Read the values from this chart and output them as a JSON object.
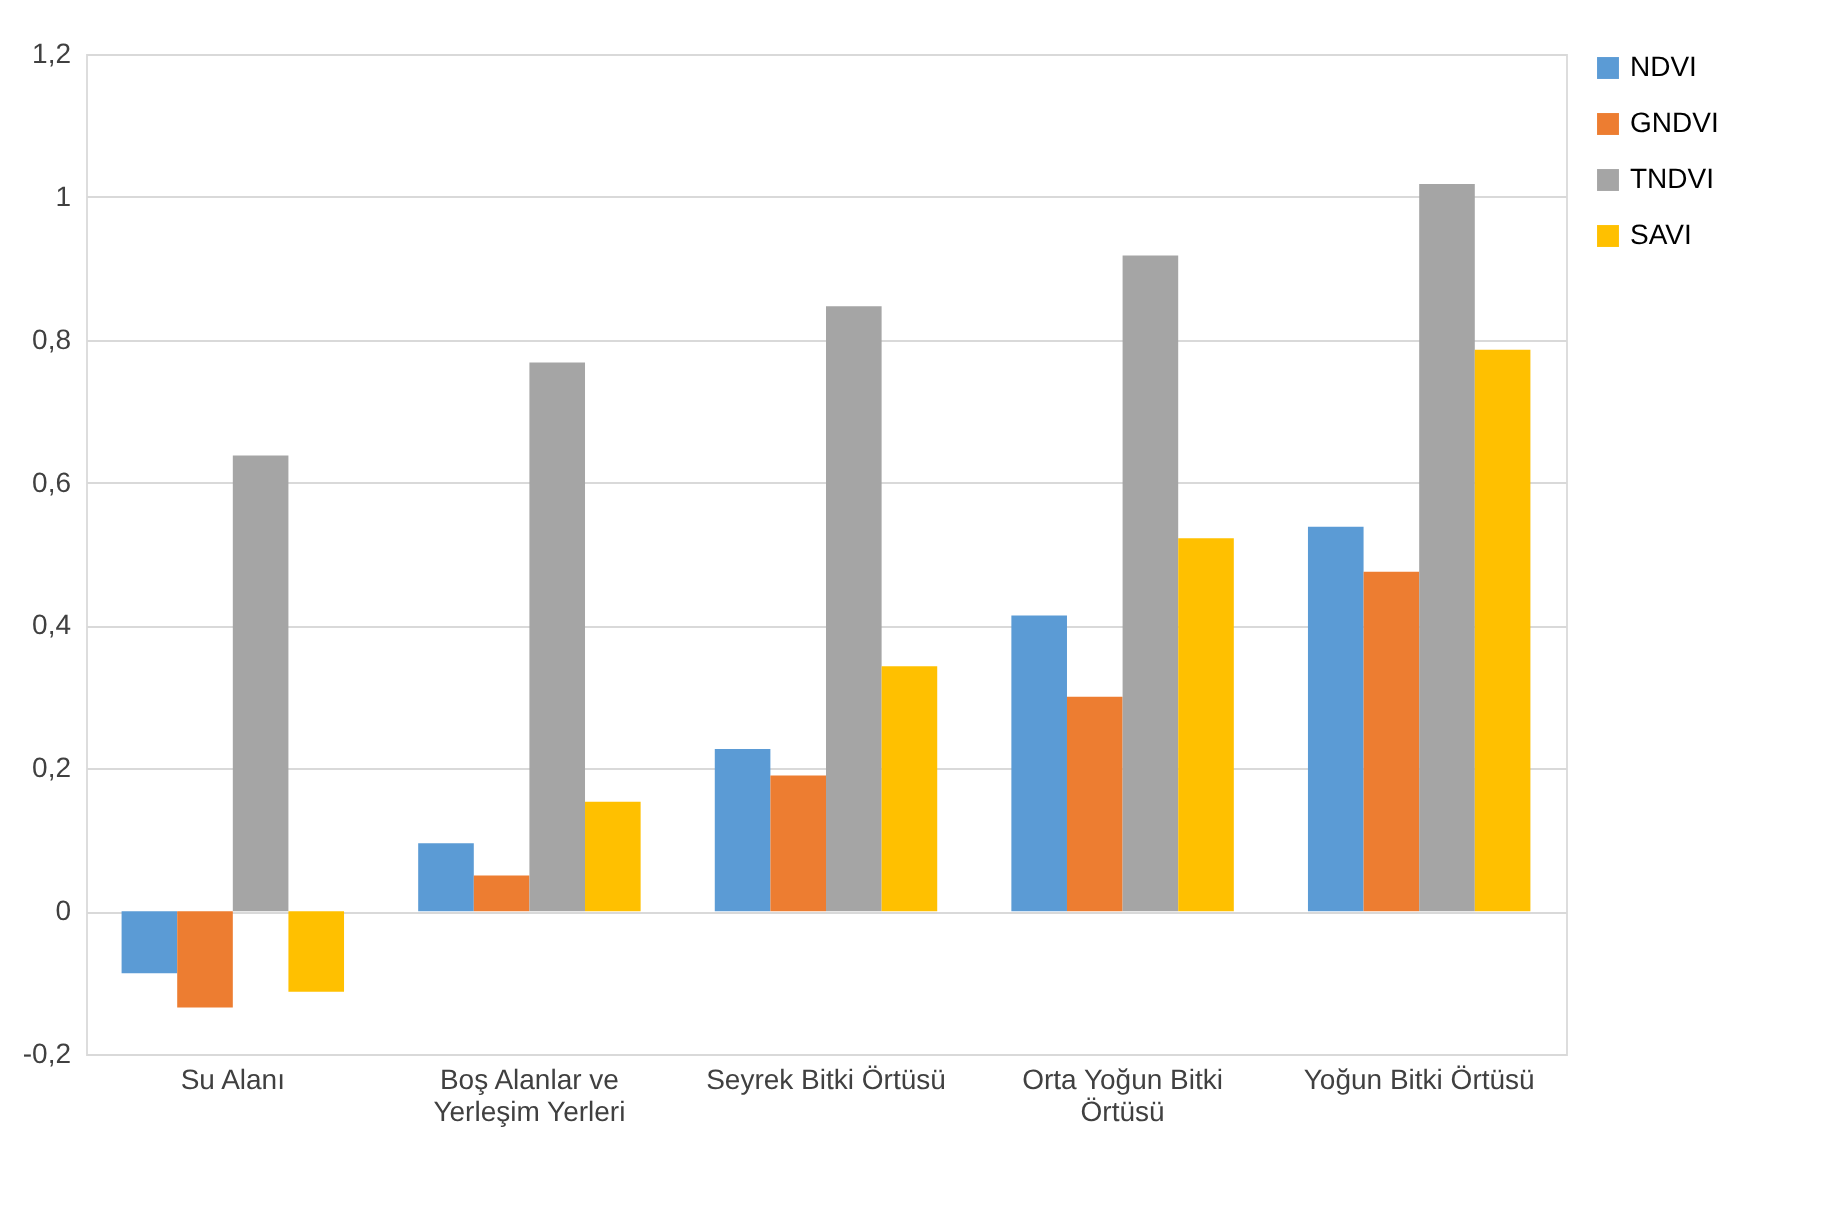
{
  "chart_data": {
    "type": "bar",
    "categories": [
      "Su Alanı",
      "Boş Alanlar ve Yerleşim Yerleri",
      "Seyrek Bitki Örtüsü",
      "Orta Yoğun Bitki Örtüsü",
      "Yoğun Bitki Örtüsü"
    ],
    "series": [
      {
        "name": "NDVI",
        "color": "#5b9bd5",
        "values": [
          -0.087,
          0.095,
          0.227,
          0.414,
          0.538
        ]
      },
      {
        "name": "GNDVI",
        "color": "#ed7d31",
        "values": [
          -0.135,
          0.05,
          0.19,
          0.3,
          0.475
        ]
      },
      {
        "name": "TNDVI",
        "color": "#a5a5a5",
        "values": [
          0.638,
          0.768,
          0.847,
          0.918,
          1.018
        ]
      },
      {
        "name": "SAVI",
        "color": "#ffc000",
        "values": [
          -0.113,
          0.153,
          0.343,
          0.522,
          0.786
        ]
      }
    ],
    "ylim": [
      -0.2,
      1.2
    ],
    "yticks": [
      {
        "value": -0.2,
        "label": "-0,2"
      },
      0,
      {
        "value": 0.2,
        "label": "0,2"
      },
      {
        "value": 0.4,
        "label": "0,4"
      },
      {
        "value": 0.6,
        "label": "0,6"
      },
      {
        "value": 0.8,
        "label": "0,8"
      },
      1,
      {
        "value": 1.2,
        "label": "1,2"
      }
    ],
    "grid": "y",
    "legend": "right"
  }
}
